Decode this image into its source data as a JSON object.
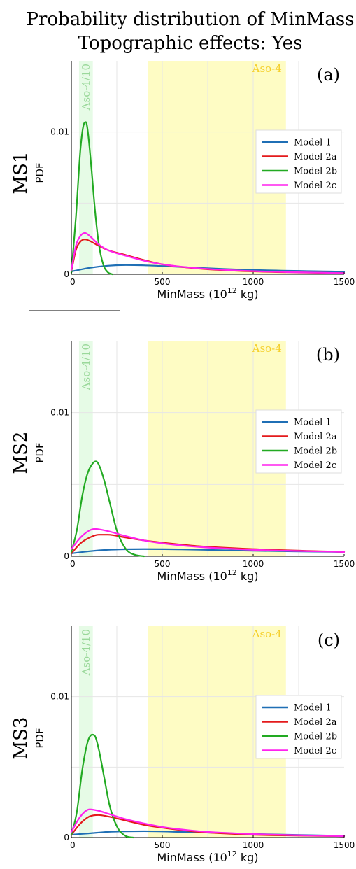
{
  "title": {
    "line1": "Probability distribution of MinMass",
    "line2": "Topographic effects: Yes"
  },
  "colors": {
    "model1": "#1f6fb5",
    "model2a": "#e41a1c",
    "model2b": "#22aa22",
    "model2c": "#ff22ee",
    "green_band": "#e6fbe6",
    "yellow_band": "#fefcc4",
    "grid": "#e6e6e6"
  },
  "chart_data": [
    {
      "type": "line",
      "panel": "(a)",
      "row_label": "MS1",
      "ylabel": "PDF",
      "xlabel": "MinMass (10",
      "xlabel_sup": "12",
      "xlabel_unit": " kg)",
      "xlim": [
        0,
        1500
      ],
      "ylim": [
        0,
        0.015
      ],
      "x_ticks": [
        "0",
        "500",
        "1000",
        "1500"
      ],
      "y_ticks": [
        "0",
        "0.01"
      ],
      "grid": true,
      "bands": [
        {
          "label": "Aso-4/10",
          "x": [
            42,
            118
          ],
          "color": "green"
        },
        {
          "label": "Aso-4",
          "x": [
            420,
            1180
          ],
          "color": "yellow"
        }
      ],
      "legend": {
        "position": "right",
        "entries": [
          "Model 1",
          "Model 2a",
          "Model 2b",
          "Model 2c"
        ]
      },
      "series": [
        {
          "name": "Model 1",
          "color_key": "model1",
          "x": [
            0,
            100,
            200,
            300,
            400,
            500,
            700,
            1000,
            1500
          ],
          "y": [
            0.0002,
            0.00045,
            0.0006,
            0.00065,
            0.00063,
            0.00058,
            0.00045,
            0.0003,
            0.00018
          ]
        },
        {
          "name": "Model 2a",
          "color_key": "model2a",
          "x": [
            0,
            25,
            50,
            75,
            100,
            150,
            200,
            300,
            400,
            500,
            700,
            1000,
            1500
          ],
          "y": [
            0.0002,
            0.0017,
            0.0023,
            0.00245,
            0.00235,
            0.002,
            0.0017,
            0.00135,
            0.001,
            0.0007,
            0.0004,
            0.0002,
            8e-05
          ]
        },
        {
          "name": "Model 2b",
          "color_key": "model2b",
          "x": [
            0,
            25,
            50,
            70,
            80,
            90,
            110,
            130,
            150,
            175,
            200,
            225
          ],
          "y": [
            0.0001,
            0.004,
            0.0088,
            0.0106,
            0.0107,
            0.0101,
            0.0075,
            0.0045,
            0.0022,
            0.0007,
            0.00015,
            0
          ]
        },
        {
          "name": "Model 2c",
          "color_key": "model2c",
          "x": [
            0,
            25,
            50,
            75,
            100,
            150,
            200,
            300,
            400,
            500,
            700,
            1000,
            1500
          ],
          "y": [
            0.0003,
            0.002,
            0.0027,
            0.0029,
            0.0027,
            0.0021,
            0.0017,
            0.0013,
            0.00095,
            0.0007,
            0.00042,
            0.00022,
            8e-05
          ]
        }
      ]
    },
    {
      "type": "line",
      "panel": "(b)",
      "row_label": "MS2",
      "ylabel": "PDF",
      "xlabel": "MinMass (10",
      "xlabel_sup": "12",
      "xlabel_unit": " kg)",
      "xlim": [
        0,
        1500
      ],
      "ylim": [
        0,
        0.015
      ],
      "x_ticks": [
        "0",
        "500",
        "1000",
        "1500"
      ],
      "y_ticks": [
        "0",
        "0.01"
      ],
      "grid": true,
      "bands": [
        {
          "label": "Aso-4/10",
          "x": [
            42,
            118
          ],
          "color": "green"
        },
        {
          "label": "Aso-4",
          "x": [
            420,
            1180
          ],
          "color": "yellow"
        }
      ],
      "legend": {
        "position": "right",
        "entries": [
          "Model 1",
          "Model 2a",
          "Model 2b",
          "Model 2c"
        ]
      },
      "series": [
        {
          "name": "Model 1",
          "color_key": "model1",
          "x": [
            0,
            100,
            200,
            400,
            600,
            800,
            1000,
            1500
          ],
          "y": [
            0.0002,
            0.00035,
            0.00045,
            0.0005,
            0.00048,
            0.00043,
            0.00038,
            0.0003
          ]
        },
        {
          "name": "Model 2a",
          "color_key": "model2a",
          "x": [
            0,
            50,
            100,
            150,
            200,
            300,
            400,
            500,
            700,
            1000,
            1500
          ],
          "y": [
            0.0002,
            0.0009,
            0.0013,
            0.0015,
            0.0015,
            0.0013,
            0.0011,
            0.00095,
            0.0007,
            0.0005,
            0.0003
          ]
        },
        {
          "name": "Model 2b",
          "color_key": "model2b",
          "x": [
            0,
            30,
            60,
            90,
            120,
            135,
            150,
            180,
            210,
            250,
            300,
            350,
            400
          ],
          "y": [
            0.0003,
            0.0018,
            0.0042,
            0.0058,
            0.0065,
            0.0066,
            0.0064,
            0.0053,
            0.0038,
            0.0018,
            0.0005,
            0.0001,
            0
          ]
        },
        {
          "name": "Model 2c",
          "color_key": "model2c",
          "x": [
            0,
            50,
            100,
            130,
            200,
            300,
            400,
            500,
            700,
            1000,
            1500
          ],
          "y": [
            0.0005,
            0.0013,
            0.0018,
            0.0019,
            0.00175,
            0.0014,
            0.0011,
            0.0009,
            0.00065,
            0.00045,
            0.0003
          ]
        }
      ]
    },
    {
      "type": "line",
      "panel": "(c)",
      "row_label": "MS3",
      "ylabel": "PDF",
      "xlabel": "MinMass (10",
      "xlabel_sup": "12",
      "xlabel_unit": " kg)",
      "xlim": [
        0,
        1500
      ],
      "ylim": [
        0,
        0.015
      ],
      "x_ticks": [
        "0",
        "500",
        "1000",
        "1500"
      ],
      "y_ticks": [
        "0",
        "0.01"
      ],
      "grid": true,
      "bands": [
        {
          "label": "Aso-4/10",
          "x": [
            42,
            118
          ],
          "color": "green"
        },
        {
          "label": "Aso-4",
          "x": [
            420,
            1180
          ],
          "color": "yellow"
        }
      ],
      "legend": {
        "position": "right",
        "entries": [
          "Model 1",
          "Model 2a",
          "Model 2b",
          "Model 2c"
        ]
      },
      "series": [
        {
          "name": "Model 1",
          "color_key": "model1",
          "x": [
            0,
            100,
            200,
            400,
            600,
            800,
            1000,
            1500
          ],
          "y": [
            0.0002,
            0.0003,
            0.0004,
            0.00045,
            0.0004,
            0.00033,
            0.00025,
            0.00012
          ]
        },
        {
          "name": "Model 2a",
          "color_key": "model2a",
          "x": [
            0,
            50,
            100,
            150,
            200,
            300,
            400,
            500,
            700,
            1000,
            1500
          ],
          "y": [
            0.0002,
            0.001,
            0.0015,
            0.0016,
            0.0015,
            0.0012,
            0.0009,
            0.0007,
            0.0004,
            0.0002,
            0.0001
          ]
        },
        {
          "name": "Model 2b",
          "color_key": "model2b",
          "x": [
            0,
            30,
            60,
            90,
            115,
            130,
            150,
            180,
            210,
            250,
            300,
            340
          ],
          "y": [
            0.0002,
            0.0018,
            0.0048,
            0.0068,
            0.0073,
            0.0072,
            0.0063,
            0.0043,
            0.0023,
            0.0008,
            0.0001,
            0
          ]
        },
        {
          "name": "Model 2c",
          "color_key": "model2c",
          "x": [
            0,
            50,
            100,
            150,
            200,
            300,
            400,
            500,
            700,
            1000,
            1500
          ],
          "y": [
            0.0004,
            0.0015,
            0.002,
            0.0019,
            0.0017,
            0.0013,
            0.001,
            0.00075,
            0.00045,
            0.00025,
            0.0001
          ]
        }
      ]
    }
  ]
}
